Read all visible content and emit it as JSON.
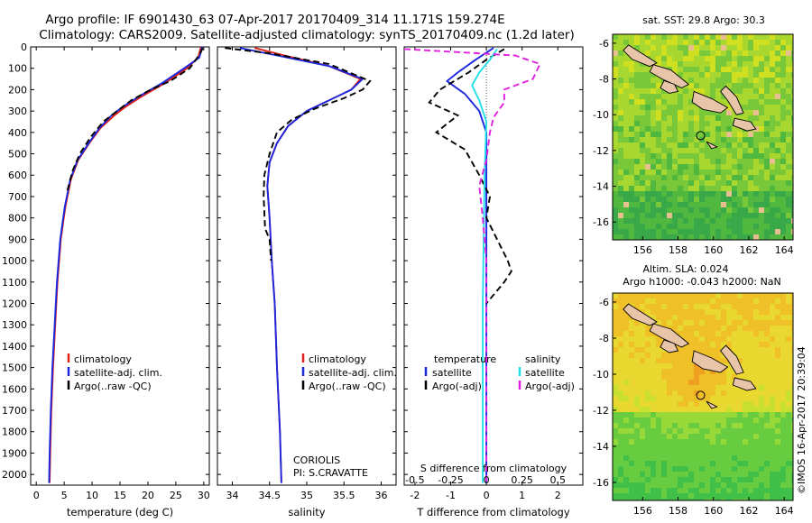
{
  "title_line1": "Argo profile: IF 6901430_63 07-Apr-2017 20170409_314 11.171S 159.274E",
  "title_line2": "Climatology: CARS2009. Satellite-adjusted climatology: synTS_20170409.nc (1.2d later)",
  "footer_stamp": "©IMOS 16-Apr-2017 20:39:04",
  "chart_data": [
    {
      "id": "temperature",
      "type": "line",
      "xlabel": "temperature (deg C)",
      "xlim": [
        -1,
        31
      ],
      "ylim": [
        0,
        2050
      ],
      "xticks": [
        0,
        5,
        10,
        15,
        20,
        25,
        30
      ],
      "yticks": [
        0,
        100,
        200,
        300,
        400,
        500,
        600,
        700,
        800,
        900,
        1000,
        1100,
        1200,
        1300,
        1400,
        1500,
        1600,
        1700,
        1800,
        1900,
        2000
      ],
      "ytick_labels": [
        "0",
        "100",
        "200",
        "300",
        "400",
        "500",
        "600",
        "700",
        "800",
        "900",
        "1000",
        "1100",
        "1200",
        "1300",
        "1400",
        "1500",
        "1600",
        "1700",
        "1800",
        "1900",
        "2000"
      ],
      "legend": [
        "climatology",
        "satellite-adj. clim.",
        "Argo(..raw -QC)"
      ],
      "series": [
        {
          "name": "climatology",
          "color": "#e0201a",
          "dash": "",
          "points": [
            [
              29.5,
              0
            ],
            [
              29,
              50
            ],
            [
              27,
              100
            ],
            [
              23,
              170
            ],
            [
              19,
              230
            ],
            [
              16,
              280
            ],
            [
              14,
              320
            ],
            [
              11.5,
              380
            ],
            [
              9.5,
              450
            ],
            [
              7.5,
              530
            ],
            [
              6.2,
              620
            ],
            [
              5.2,
              750
            ],
            [
              4.4,
              900
            ],
            [
              3.8,
              1100
            ],
            [
              3.4,
              1300
            ],
            [
              3,
              1500
            ],
            [
              2.7,
              1700
            ],
            [
              2.5,
              1900
            ],
            [
              2.4,
              2040
            ]
          ]
        },
        {
          "name": "satellite-adj. clim.",
          "color": "#1c28e0",
          "dash": "",
          "points": [
            [
              29.7,
              0
            ],
            [
              29.2,
              50
            ],
            [
              26.5,
              100
            ],
            [
              22.5,
              170
            ],
            [
              18.5,
              230
            ],
            [
              15.5,
              280
            ],
            [
              13.5,
              320
            ],
            [
              11.3,
              380
            ],
            [
              9.4,
              450
            ],
            [
              7.4,
              530
            ],
            [
              6.1,
              620
            ],
            [
              5.1,
              750
            ],
            [
              4.3,
              900
            ],
            [
              3.7,
              1100
            ],
            [
              3.3,
              1300
            ],
            [
              2.9,
              1500
            ],
            [
              2.6,
              1700
            ],
            [
              2.4,
              1900
            ],
            [
              2.3,
              2040
            ]
          ]
        },
        {
          "name": "Argo(..raw -QC)",
          "color": "#000000",
          "dash": "7,4",
          "points": [
            [
              29.8,
              5
            ],
            [
              29.4,
              30
            ],
            [
              27.5,
              100
            ],
            [
              24,
              160
            ],
            [
              20.5,
              200
            ],
            [
              17,
              250
            ],
            [
              14.5,
              300
            ],
            [
              12,
              350
            ],
            [
              9.8,
              420
            ],
            [
              7.8,
              500
            ],
            [
              6.5,
              580
            ],
            [
              5.5,
              680
            ]
          ]
        }
      ]
    },
    {
      "id": "salinity",
      "type": "line",
      "xlabel": "salinity",
      "xlim": [
        33.8,
        36.2
      ],
      "ylim": [
        0,
        2050
      ],
      "xticks": [
        34,
        34.5,
        35,
        35.5,
        36
      ],
      "xtick_labels": [
        "34",
        "34.5",
        "35",
        "35.5",
        "36"
      ],
      "legend": [
        "climatology",
        "satellite-adj. clim.",
        "Argo(..raw -QC)"
      ],
      "annotation": [
        "CORIOLIS",
        "PI: S.CRAVATTE"
      ],
      "series": [
        {
          "name": "climatology",
          "color": "#e0201a",
          "dash": "",
          "points": [
            [
              34.3,
              5
            ],
            [
              34.7,
              40
            ],
            [
              35.3,
              90
            ],
            [
              35.72,
              150
            ],
            [
              35.6,
              200
            ],
            [
              35.3,
              250
            ],
            [
              35,
              300
            ],
            [
              34.75,
              370
            ],
            [
              34.6,
              450
            ],
            [
              34.5,
              540
            ],
            [
              34.47,
              650
            ],
            [
              34.5,
              800
            ],
            [
              34.53,
              1000
            ],
            [
              34.57,
              1200
            ],
            [
              34.6,
              1500
            ],
            [
              34.64,
              1800
            ],
            [
              34.66,
              2040
            ]
          ]
        },
        {
          "name": "satellite-adj. clim.",
          "color": "#1c28e0",
          "dash": "",
          "points": [
            [
              34.1,
              5
            ],
            [
              34.6,
              40
            ],
            [
              35.3,
              90
            ],
            [
              35.75,
              150
            ],
            [
              35.6,
              200
            ],
            [
              35.3,
              250
            ],
            [
              35,
              300
            ],
            [
              34.75,
              370
            ],
            [
              34.6,
              450
            ],
            [
              34.5,
              540
            ],
            [
              34.47,
              650
            ],
            [
              34.5,
              800
            ],
            [
              34.53,
              1000
            ],
            [
              34.57,
              1200
            ],
            [
              34.6,
              1500
            ],
            [
              34.64,
              1800
            ],
            [
              34.66,
              2040
            ]
          ]
        },
        {
          "name": "Argo(..raw -QC)",
          "color": "#000000",
          "dash": "7,4",
          "points": [
            [
              33.9,
              5
            ],
            [
              34.5,
              30
            ],
            [
              35.3,
              80
            ],
            [
              35.85,
              160
            ],
            [
              35.75,
              200
            ],
            [
              35.5,
              240
            ],
            [
              35.1,
              290
            ],
            [
              34.8,
              340
            ],
            [
              34.6,
              400
            ],
            [
              34.5,
              500
            ],
            [
              34.43,
              600
            ],
            [
              34.42,
              700
            ],
            [
              34.44,
              850
            ],
            [
              34.5,
              900
            ],
            [
              34.52,
              1000
            ]
          ]
        }
      ]
    },
    {
      "id": "differences",
      "type": "line",
      "xlabel": "T difference from climatology",
      "xlabel_top": "S difference from climatology",
      "xlim": [
        -2.3,
        2.7
      ],
      "ylim": [
        0,
        2050
      ],
      "xticks": [
        -2,
        -1,
        0,
        1,
        2
      ],
      "xticks_salinity": [
        -0.5,
        -0.25,
        0,
        0.25,
        0.5
      ],
      "xtick_labels_salinity": [
        "-0.5",
        "-0.25",
        "0",
        "0.25",
        "0.5"
      ],
      "legend_temperature": [
        "temperature",
        "satellite",
        "Argo(-adj)"
      ],
      "legend_salinity": [
        "salinity",
        "satellite",
        "Argo(-adj)"
      ],
      "series": [
        {
          "name": "temperature satellite",
          "color": "#1c28e0",
          "dash": "",
          "points": [
            [
              0.2,
              5
            ],
            [
              -0.3,
              60
            ],
            [
              -0.8,
              120
            ],
            [
              -1.1,
              160
            ],
            [
              -0.6,
              220
            ],
            [
              -0.2,
              300
            ],
            [
              0,
              400
            ],
            [
              0,
              2040
            ]
          ]
        },
        {
          "name": "temperature Argo(-adj)",
          "color": "#000000",
          "dash": "7,4",
          "points": [
            [
              0.5,
              10
            ],
            [
              0,
              60
            ],
            [
              -0.5,
              120
            ],
            [
              -1.3,
              200
            ],
            [
              -1.6,
              260
            ],
            [
              -0.8,
              320
            ],
            [
              -1.4,
              400
            ],
            [
              -0.6,
              480
            ],
            [
              -0.2,
              600
            ],
            [
              0.1,
              700
            ],
            [
              0,
              800
            ],
            [
              0.6,
              1000
            ],
            [
              0.7,
              1050
            ],
            [
              0.5,
              1100
            ],
            [
              0,
              1200
            ]
          ]
        },
        {
          "name": "salinity satellite",
          "color": "#22e0e8",
          "dash": "",
          "points": [
            [
              0.3,
              10
            ],
            [
              0.1,
              60
            ],
            [
              -0.2,
              120
            ],
            [
              -0.4,
              180
            ],
            [
              -0.2,
              250
            ],
            [
              0,
              350
            ],
            [
              -0.05,
              600
            ],
            [
              -0.1,
              1200
            ],
            [
              -0.1,
              2040
            ]
          ]
        },
        {
          "name": "salinity Argo(-adj)",
          "color": "#e020e0",
          "dash": "7,4",
          "points": [
            [
              -2.3,
              10
            ],
            [
              0.8,
              40
            ],
            [
              1.5,
              80
            ],
            [
              1.3,
              150
            ],
            [
              0.5,
              200
            ],
            [
              0.5,
              260
            ],
            [
              0.2,
              330
            ],
            [
              0.1,
              400
            ],
            [
              0,
              530
            ],
            [
              -0.2,
              650
            ],
            [
              -0.1,
              800
            ],
            [
              0,
              1000
            ],
            [
              0,
              2040
            ]
          ]
        }
      ]
    },
    {
      "id": "sst-map",
      "type": "heatmap",
      "title": "sat. SST: 29.8 Argo: 30.3",
      "xlim": [
        154.3,
        164.5
      ],
      "ylim": [
        -17,
        -5.5
      ],
      "xticks": [
        156,
        158,
        160,
        162,
        164
      ],
      "yticks": [
        -6,
        -8,
        -10,
        -12,
        -14,
        -16
      ],
      "marker": [
        159.274,
        -11.171
      ]
    },
    {
      "id": "sla-map",
      "type": "heatmap",
      "title_line1": "Altim. SLA: 0.024",
      "title_line2": "Argo h1000: -0.043 h2000: NaN",
      "xlim": [
        154.3,
        164.5
      ],
      "ylim": [
        -17,
        -5.5
      ],
      "xticks": [
        156,
        158,
        160,
        162,
        164
      ],
      "yticks": [
        -6,
        -8,
        -10,
        -12,
        -14,
        -16
      ],
      "marker": [
        159.274,
        -11.171
      ]
    }
  ]
}
